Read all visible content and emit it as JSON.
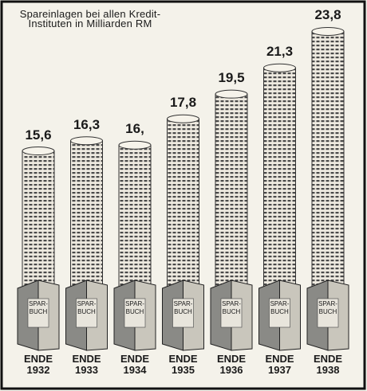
{
  "chart_data": {
    "type": "column",
    "title": "Spareinlagen bei allen Kredit-Instituten in Milliarden RM",
    "categories": [
      "ENDE 1932",
      "ENDE 1933",
      "ENDE 1934",
      "ENDE 1935",
      "ENDE 1936",
      "ENDE 1937",
      "ENDE 1938"
    ],
    "values": [
      15.6,
      16.3,
      16,
      17.8,
      19.5,
      21.3,
      23.8
    ],
    "value_labels": [
      "15,6",
      "16,3",
      "16,",
      "17,8",
      "19,5",
      "21,3",
      "23,8"
    ],
    "book_label": "SPAR-BUCH",
    "color": "#555555"
  }
}
